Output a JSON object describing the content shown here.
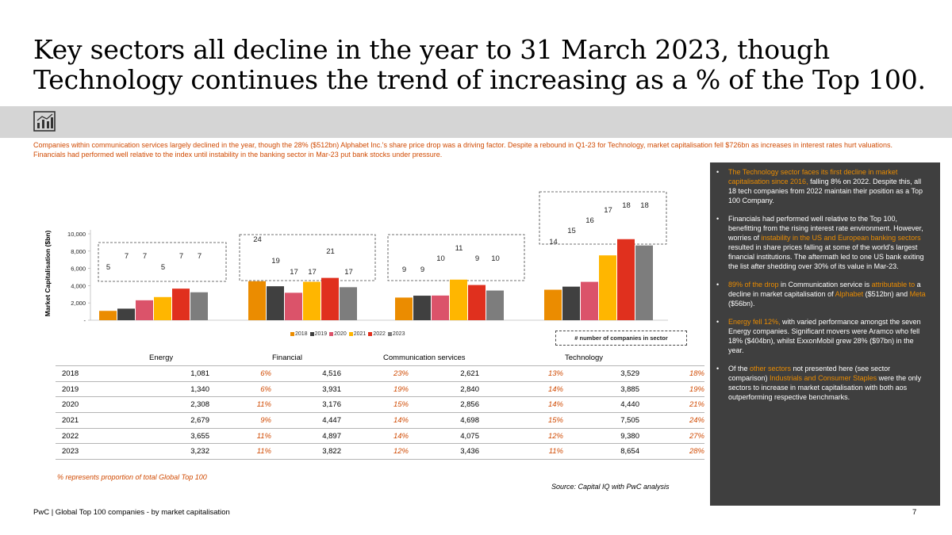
{
  "title": {
    "line1": "Key sectors all decline in the year to 31 March 2023, though",
    "line2": "Technology continues the trend of increasing as a % of the Top 100."
  },
  "intro": "Companies within communication services largely declined in the year, though the 28% ($512bn) Alphabet Inc.'s share price drop was a driving factor. Despite a rebound in Q1-23 for Technology, market capitalisation fell $726bn as increases in interest rates hurt valuations. Financials had performed well relative to the index until instability in the banking sector in Mar-23 put bank stocks under pressure.",
  "chart_data": {
    "type": "bar",
    "ylabel": "Market Capitalisation ($bn)",
    "ylim": [
      0,
      10000
    ],
    "yticks": [
      "-",
      "2,000",
      "4,000",
      "6,000",
      "8,000",
      "10,000"
    ],
    "categories": [
      "Energy",
      "Financial",
      "Communication services",
      "Technology"
    ],
    "series": [
      {
        "name": "2018",
        "color": "#eb8c00",
        "values": [
          1081,
          4516,
          2621,
          3529
        ]
      },
      {
        "name": "2019",
        "color": "#404040",
        "values": [
          1340,
          3931,
          2840,
          3885
        ]
      },
      {
        "name": "2020",
        "color": "#db536a",
        "values": [
          2308,
          3176,
          2856,
          4440
        ]
      },
      {
        "name": "2021",
        "color": "#ffb600",
        "values": [
          2679,
          4447,
          4698,
          7505
        ]
      },
      {
        "name": "2022",
        "color": "#e0301e",
        "values": [
          3655,
          4897,
          4075,
          9380
        ]
      },
      {
        "name": "2023",
        "color": "#7d7d7d",
        "values": [
          3232,
          3822,
          3436,
          8654
        ]
      }
    ],
    "company_counts": [
      [
        "5",
        "7",
        "7",
        "5",
        "7",
        "7"
      ],
      [
        "24",
        "19",
        "17",
        "17",
        "21",
        "17"
      ],
      [
        "9",
        "9",
        "10",
        "11",
        "9",
        "10"
      ],
      [
        "14",
        "15",
        "16",
        "17",
        "18",
        "18"
      ]
    ],
    "count_box_label": "# number of companies in sector"
  },
  "table": {
    "headers": [
      "Energy",
      "Financial",
      "Communication services",
      "Technology"
    ],
    "rows": [
      {
        "year": "2018",
        "cells": [
          "1,081",
          "6%",
          "4,516",
          "23%",
          "2,621",
          "13%",
          "3,529",
          "18%"
        ]
      },
      {
        "year": "2019",
        "cells": [
          "1,340",
          "6%",
          "3,931",
          "19%",
          "2,840",
          "14%",
          "3,885",
          "19%"
        ]
      },
      {
        "year": "2020",
        "cells": [
          "2,308",
          "11%",
          "3,176",
          "15%",
          "2,856",
          "14%",
          "4,440",
          "21%"
        ]
      },
      {
        "year": "2021",
        "cells": [
          "2,679",
          "9%",
          "4,447",
          "14%",
          "4,698",
          "15%",
          "7,505",
          "24%"
        ]
      },
      {
        "year": "2022",
        "cells": [
          "3,655",
          "11%",
          "4,897",
          "14%",
          "4,075",
          "12%",
          "9,380",
          "27%"
        ]
      },
      {
        "year": "2023",
        "cells": [
          "3,232",
          "11%",
          "3,822",
          "12%",
          "3,436",
          "11%",
          "8,654",
          "28%"
        ]
      }
    ],
    "note": "% represents proportion of total Global Top 100"
  },
  "source": "Source: Capital IQ with PwC analysis",
  "footer": "PwC | Global Top 100 companies - by market capitalisation",
  "page_number": "7",
  "side_panel": {
    "b1": {
      "h1": "The Technology sector faces its first decline in market capitalisation since 2016,",
      "t1": " falling 8% on 2022. Despite this, all 18 tech companies from 2022 maintain their position as a Top 100 Company."
    },
    "b2": {
      "t1": "Financials had performed well relative to the Top 100, benefitting from the rising interest rate environment. However, worries of ",
      "h1": "instability in the US and European banking sectors",
      "t2": " resulted in share prices falling at some of the world's largest financial institutions. The aftermath led to one US bank exiting the list after shedding over 30% of its value in Mar-23."
    },
    "b3": {
      "h1": "89% of the drop",
      "t1": " in Communication service is ",
      "h2": "attributable to",
      "t2": " a decline in market capitalisation of ",
      "h3": "Alphabet",
      "t3": " ($512bn) and ",
      "h4": "Meta",
      "t4": " ($56bn)."
    },
    "b4": {
      "h1": "Energy fell 12%,",
      "t1": " with varied performance amongst the seven Energy companies. Significant movers were Aramco who fell 18% ($404bn), whilst ExxonMobil grew 28% ($97bn) in the year."
    },
    "b5": {
      "t1": "Of the ",
      "h1": "other sectors",
      "t2": " not presented here (see sector comparison) ",
      "h2": "Industrials and Consumer Staples",
      "t3": " were the only sectors to increase in market capitalisation with both aos outperforming respective benchmarks."
    }
  }
}
